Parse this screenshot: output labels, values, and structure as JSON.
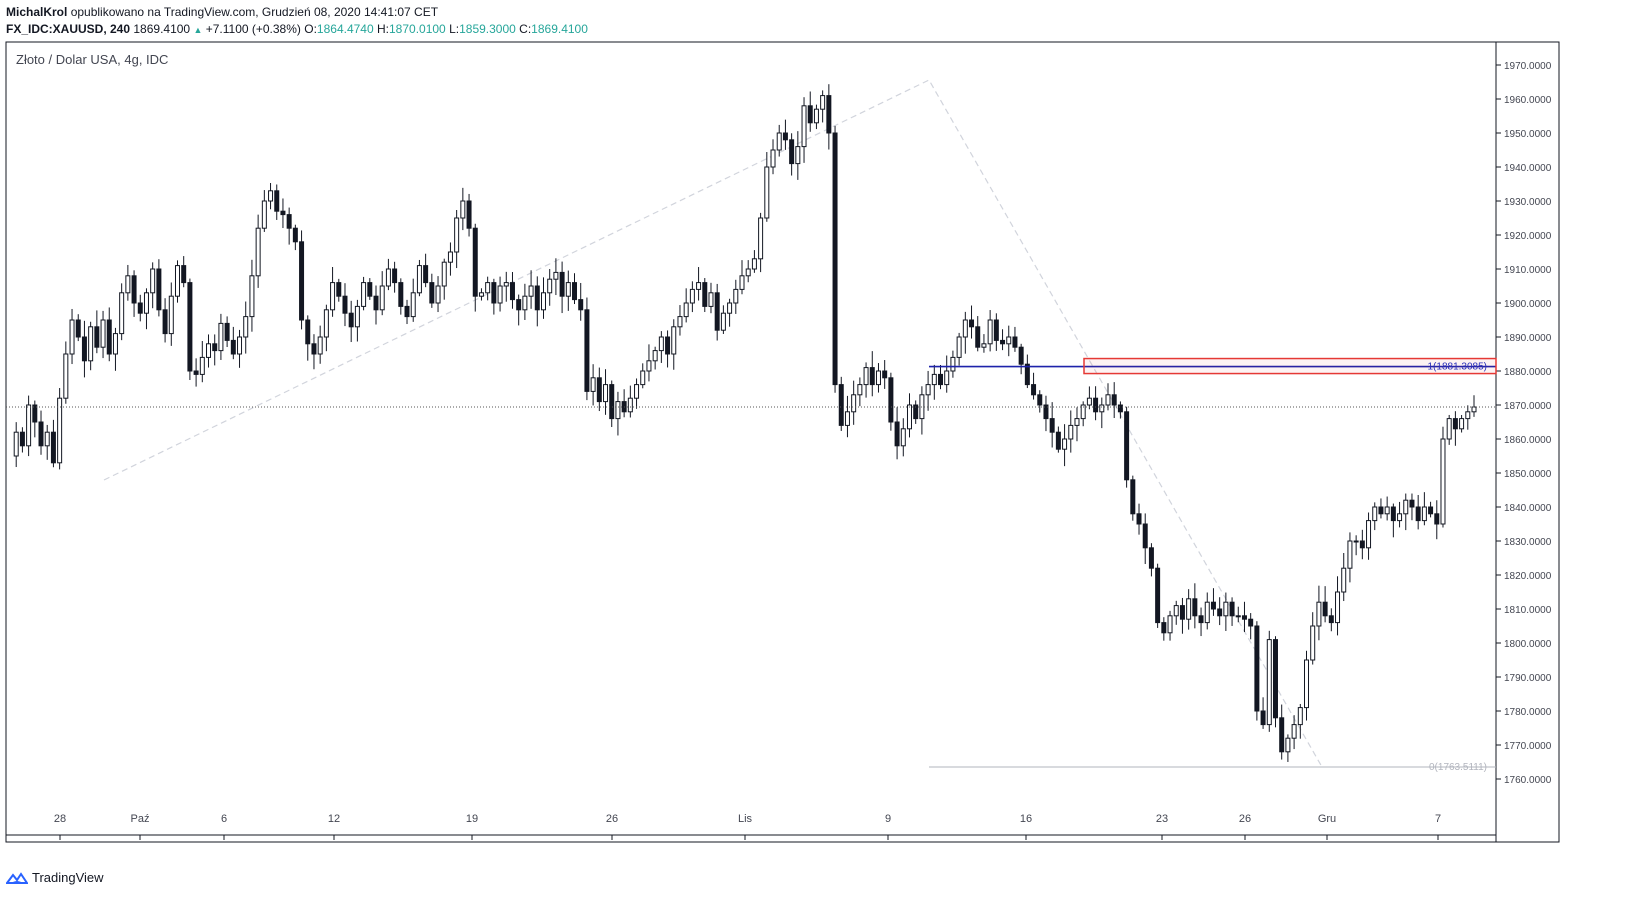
{
  "header": {
    "author": "MichalKrol",
    "published_text": "opublikowano na TradingView.com, Grudzień 08, 2020 14:41:07 CET",
    "symbol": "FX_IDC:XAUUSD, 240",
    "last": "1869.4100",
    "change": "+7.1100 (+0.38%)",
    "open_label": "O:",
    "open": "1864.4740",
    "high_label": "H:",
    "high": "1870.0100",
    "low_label": "L:",
    "low": "1859.3000",
    "close_label": "C:",
    "close": "1869.4100"
  },
  "chart_title": "Złoto / Dolar USA, 4g, IDC",
  "footer": {
    "brand": "TradingView"
  },
  "colors": {
    "up": "#26a69a",
    "candle": "#131722",
    "blue_line": "#1e22aa",
    "red_zone": "#e53935",
    "grid_dash": "#d1d4dc",
    "fib_line": "#b2b5be"
  },
  "chart_data": {
    "type": "candlestick",
    "ylim": [
      1754,
      1976
    ],
    "y_ticks": [
      "1970.0000",
      "1960.0000",
      "1950.0000",
      "1940.0000",
      "1930.0000",
      "1920.0000",
      "1910.0000",
      "1900.0000",
      "1890.0000",
      "1880.0000",
      "1870.0000",
      "1860.0000",
      "1850.0000",
      "1840.0000",
      "1830.0000",
      "1820.0000",
      "1810.0000",
      "1800.0000",
      "1790.0000",
      "1780.0000",
      "1770.0000",
      "1760.0000"
    ],
    "x_ticks": [
      "28",
      "Paź",
      "6",
      "12",
      "19",
      "26",
      "Lis",
      "9",
      "16",
      "23",
      "26",
      "Gru",
      "7"
    ],
    "current_price": 1869.41,
    "fib_labels": {
      "level_1": "1(1881.3085)",
      "level_0": "0(1763.5111)"
    },
    "levels": {
      "fib_1": 1881.3085,
      "fib_0": 1763.5111
    },
    "price_path": [
      1855,
      1862,
      1858,
      1870,
      1865,
      1858,
      1862,
      1853,
      1872,
      1885,
      1895,
      1890,
      1883,
      1893,
      1887,
      1895,
      1885,
      1891,
      1903,
      1908,
      1900,
      1897,
      1903,
      1910,
      1898,
      1891,
      1902,
      1911,
      1906,
      1880,
      1879,
      1884,
      1888,
      1886,
      1894,
      1889,
      1885,
      1890,
      1896,
      1908,
      1922,
      1930,
      1933,
      1927,
      1926,
      1922,
      1918,
      1895,
      1888,
      1885,
      1890,
      1898,
      1906,
      1902,
      1897,
      1893,
      1899,
      1906,
      1902,
      1898,
      1905,
      1910,
      1906,
      1899,
      1896,
      1903,
      1911,
      1906,
      1900,
      1905,
      1912,
      1915,
      1925,
      1930,
      1922,
      1902,
      1903,
      1906,
      1900,
      1905,
      1906,
      1901,
      1898,
      1902,
      1905,
      1898,
      1903,
      1907,
      1909,
      1902,
      1906,
      1901,
      1898,
      1874,
      1878,
      1871,
      1876,
      1866,
      1871,
      1868,
      1872,
      1876,
      1880,
      1883,
      1886,
      1890,
      1885,
      1893,
      1896,
      1900,
      1904,
      1906,
      1899,
      1903,
      1892,
      1897,
      1900,
      1904,
      1908,
      1910,
      1913,
      1925,
      1940,
      1945,
      1950,
      1948,
      1941,
      1946,
      1958,
      1953,
      1957,
      1961,
      1950,
      1876,
      1864,
      1868,
      1873,
      1876,
      1881,
      1876,
      1880,
      1878,
      1865,
      1858,
      1863,
      1870,
      1866,
      1873,
      1876,
      1879,
      1876,
      1880,
      1884,
      1890,
      1895,
      1893,
      1887,
      1888,
      1895,
      1889,
      1888,
      1890,
      1887,
      1882,
      1876,
      1873,
      1870,
      1866,
      1862,
      1857,
      1860,
      1864,
      1866,
      1870,
      1872,
      1868,
      1870,
      1873,
      1870,
      1868,
      1848,
      1838,
      1835,
      1828,
      1822,
      1806,
      1803,
      1808,
      1811,
      1807,
      1813,
      1808,
      1806,
      1812,
      1810,
      1808,
      1812,
      1808,
      1808,
      1807,
      1805,
      1780,
      1776,
      1801,
      1778,
      1768,
      1772,
      1776,
      1781,
      1795,
      1805,
      1812,
      1808,
      1806,
      1815,
      1822,
      1830,
      1830,
      1828,
      1836,
      1840,
      1838,
      1840,
      1836,
      1838,
      1842,
      1840,
      1836,
      1840,
      1838,
      1835,
      1860,
      1866,
      1863,
      1866,
      1868,
      1869.41
    ]
  }
}
